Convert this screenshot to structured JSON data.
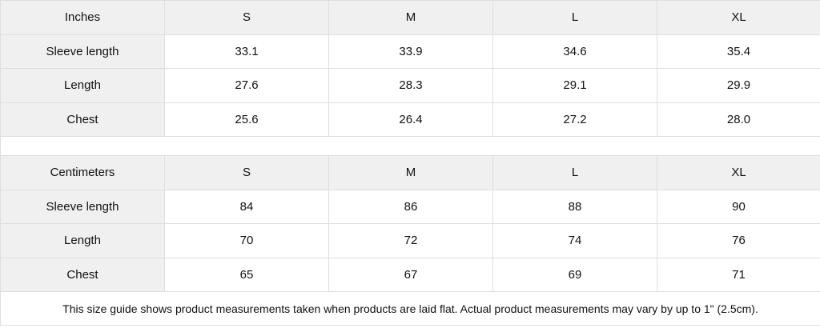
{
  "inches": {
    "header": [
      "Inches",
      "S",
      "M",
      "L",
      "XL"
    ],
    "rows": [
      {
        "label": "Sleeve length",
        "values": [
          "33.1",
          "33.9",
          "34.6",
          "35.4"
        ]
      },
      {
        "label": "Length",
        "values": [
          "27.6",
          "28.3",
          "29.1",
          "29.9"
        ]
      },
      {
        "label": "Chest",
        "values": [
          "25.6",
          "26.4",
          "27.2",
          "28.0"
        ]
      }
    ]
  },
  "centimeters": {
    "header": [
      "Centimeters",
      "S",
      "M",
      "L",
      "XL"
    ],
    "rows": [
      {
        "label": "Sleeve length",
        "values": [
          "84",
          "86",
          "88",
          "90"
        ]
      },
      {
        "label": "Length",
        "values": [
          "70",
          "72",
          "74",
          "76"
        ]
      },
      {
        "label": "Chest",
        "values": [
          "65",
          "67",
          "69",
          "71"
        ]
      }
    ]
  },
  "note": "This size guide shows product measurements taken when products are laid flat.  Actual product measurements may vary by up to 1\" (2.5cm)."
}
